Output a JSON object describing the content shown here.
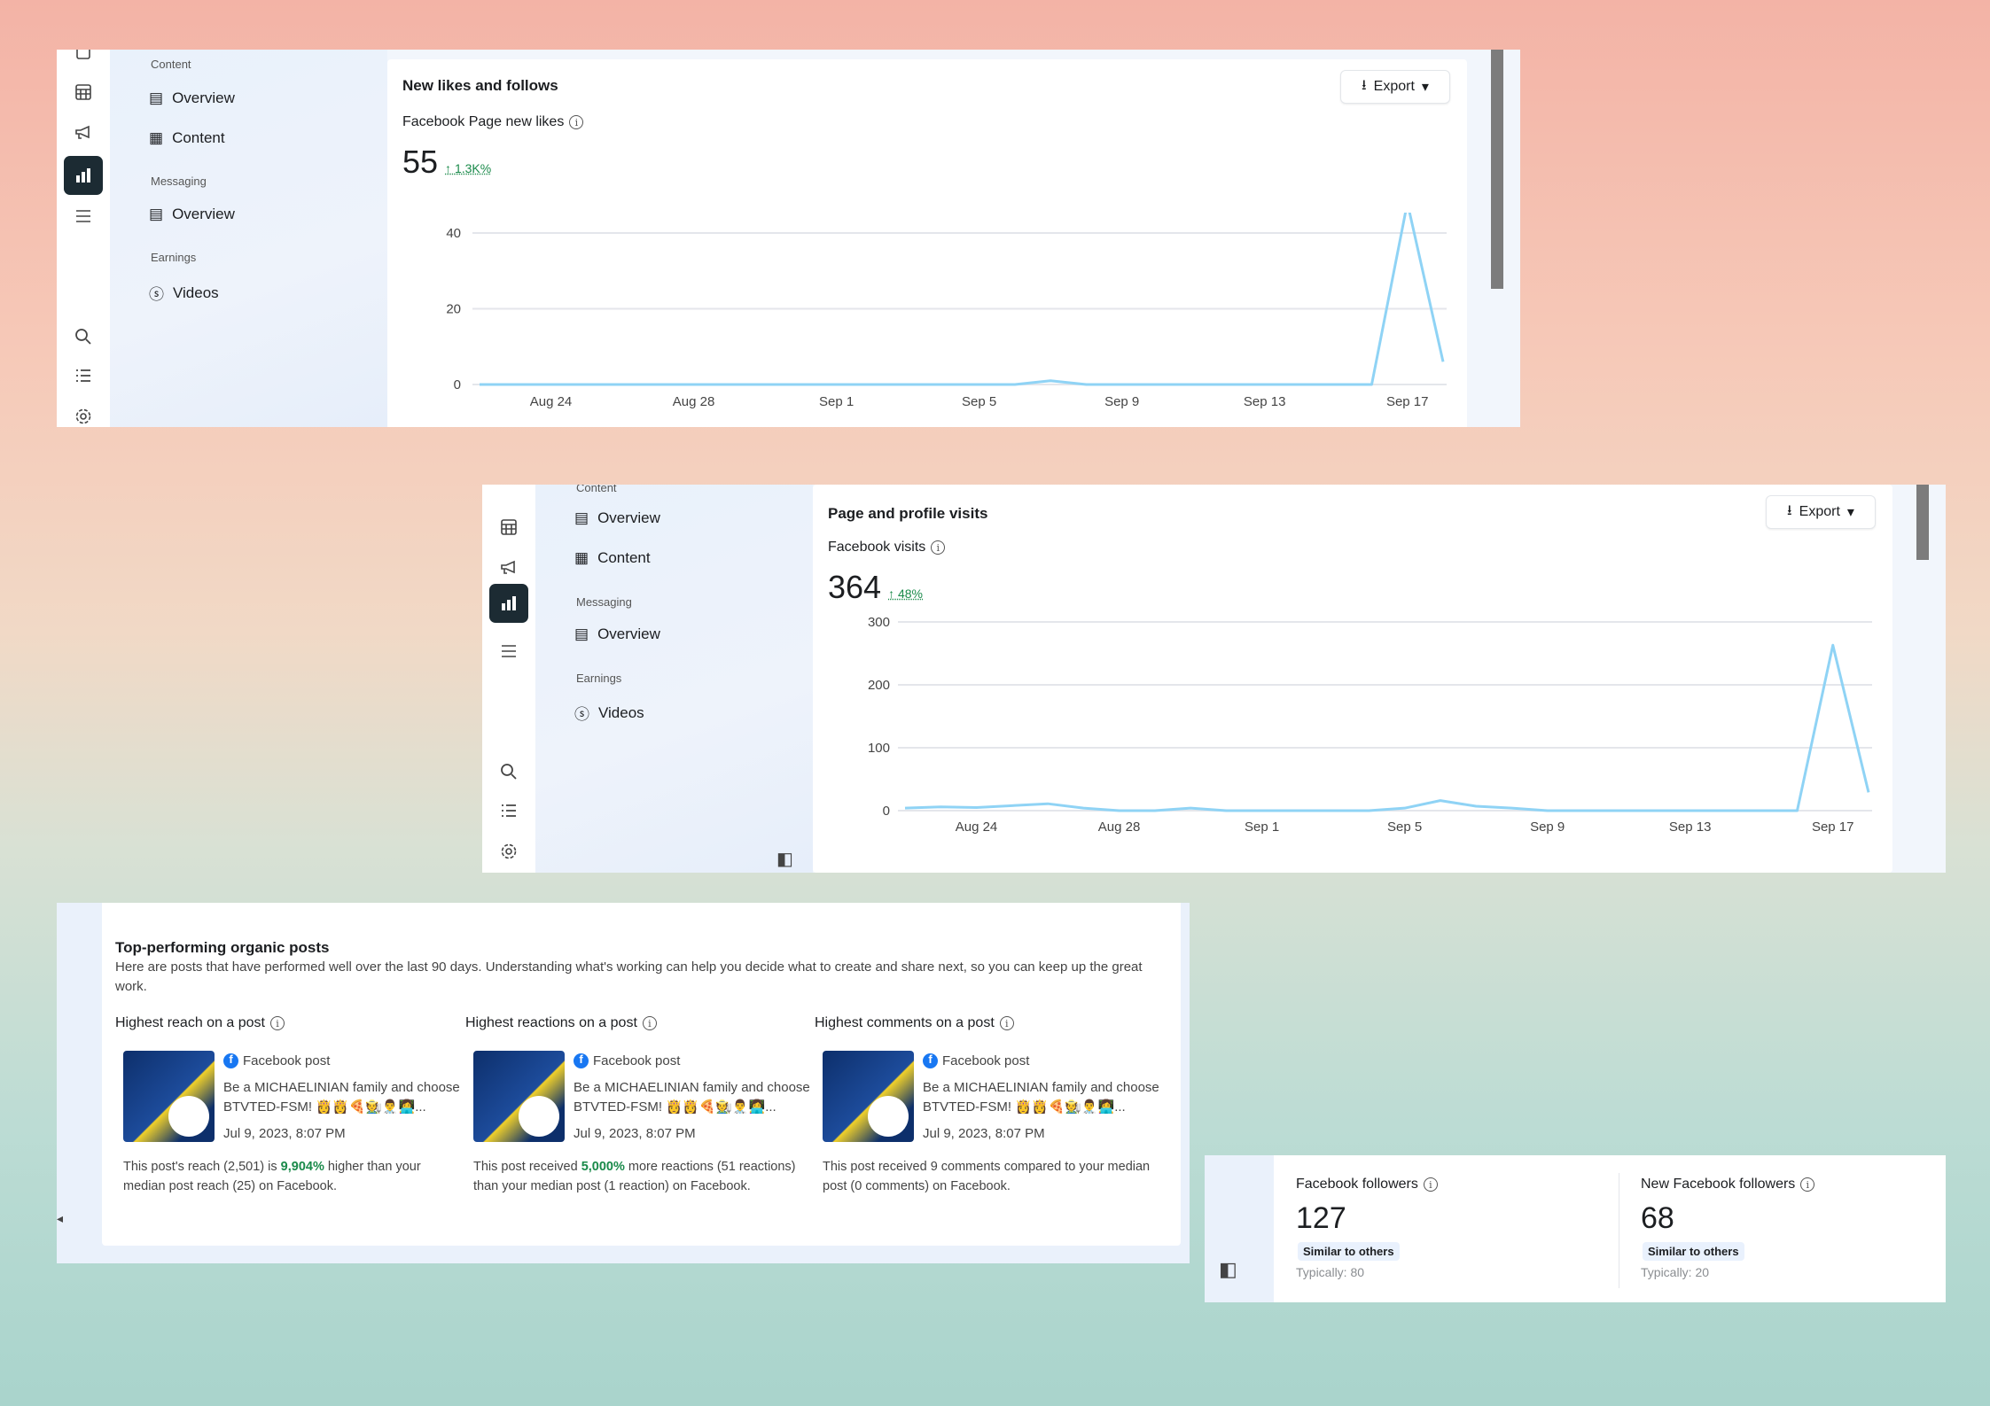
{
  "nav": {
    "sec_content": "Content",
    "overview": "Overview",
    "content": "Content",
    "sec_messaging": "Messaging",
    "msg_overview": "Overview",
    "sec_earnings": "Earnings",
    "videos": "Videos"
  },
  "panel1": {
    "title": "New likes and follows",
    "export": "Export",
    "metric_label": "Facebook Page new likes",
    "value": "55",
    "delta": "1.3K%"
  },
  "panel2": {
    "title": "Page and profile visits",
    "export": "Export",
    "metric_label": "Facebook visits",
    "value": "364",
    "delta": "48%"
  },
  "top_posts": {
    "title": "Top-performing organic posts",
    "description": "Here are posts that have performed well over the last 90 days. Understanding what's working can help you decide what to create and share next, so you can keep up the great work.",
    "columns": [
      {
        "heading": "Highest reach on a post",
        "type": "Facebook post",
        "text1": "Be a MICHAELINIAN family and choose",
        "text2": "BTVTED-FSM! 👸👸🍕🧑‍🌾👨‍⚕️👩‍💻...",
        "date": "Jul 9, 2023, 8:07 PM",
        "pre": "This post's reach (2,501) is ",
        "highlight": "9,904%",
        "post": " higher than your median post reach (25) on Facebook."
      },
      {
        "heading": "Highest reactions on a post",
        "type": "Facebook post",
        "text1": "Be a MICHAELINIAN family and choose",
        "text2": "BTVTED-FSM! 👸👸🍕🧑‍🌾👨‍⚕️👩‍💻...",
        "date": "Jul 9, 2023, 8:07 PM",
        "pre": "This post received ",
        "highlight": "5,000%",
        "post": " more reactions (51 reactions) than your median post (1 reaction) on Facebook."
      },
      {
        "heading": "Highest comments on a post",
        "type": "Facebook post",
        "text1": "Be a MICHAELINIAN family and choose",
        "text2": "BTVTED-FSM! 👸👸🍕🧑‍🌾👨‍⚕️👩‍💻...",
        "date": "Jul 9, 2023, 8:07 PM",
        "pre": "This post received 9 comments compared to your median post (0 comments) on Facebook.",
        "highlight": "",
        "post": ""
      }
    ]
  },
  "followers": [
    {
      "label": "Facebook followers",
      "value": "127",
      "badge": "Similar to others",
      "typical": "Typically: 80"
    },
    {
      "label": "New Facebook followers",
      "value": "68",
      "badge": "Similar to others",
      "typical": "Typically: 20"
    }
  ],
  "colors": {
    "line": "#8fd3f5",
    "positive": "#1a8a4a",
    "active_icon_bg": "#1c2b33"
  },
  "chart_data": [
    {
      "type": "line",
      "title": "Facebook Page new likes",
      "x": [
        "Aug 22",
        "Aug 23",
        "Aug 24",
        "Aug 25",
        "Aug 26",
        "Aug 27",
        "Aug 28",
        "Aug 29",
        "Aug 30",
        "Aug 31",
        "Sep 1",
        "Sep 2",
        "Sep 3",
        "Sep 4",
        "Sep 5",
        "Sep 6",
        "Sep 7",
        "Sep 8",
        "Sep 9",
        "Sep 10",
        "Sep 11",
        "Sep 12",
        "Sep 13",
        "Sep 14",
        "Sep 15",
        "Sep 16",
        "Sep 17",
        "Sep 18"
      ],
      "values": [
        0,
        0,
        0,
        0,
        0,
        0,
        0,
        0,
        0,
        0,
        0,
        0,
        0,
        0,
        0,
        0,
        1,
        0,
        0,
        0,
        0,
        0,
        0,
        0,
        0,
        0,
        48,
        6
      ],
      "x_ticks": [
        "Aug 24",
        "Aug 28",
        "Sep 1",
        "Sep 5",
        "Sep 9",
        "Sep 13",
        "Sep 17"
      ],
      "y_ticks": [
        "0",
        "20",
        "40"
      ],
      "ylim": [
        0,
        40
      ],
      "grid": true
    },
    {
      "type": "line",
      "title": "Facebook visits",
      "x": [
        "Aug 22",
        "Aug 23",
        "Aug 24",
        "Aug 25",
        "Aug 26",
        "Aug 27",
        "Aug 28",
        "Aug 29",
        "Aug 30",
        "Aug 31",
        "Sep 1",
        "Sep 2",
        "Sep 3",
        "Sep 4",
        "Sep 5",
        "Sep 6",
        "Sep 7",
        "Sep 8",
        "Sep 9",
        "Sep 10",
        "Sep 11",
        "Sep 12",
        "Sep 13",
        "Sep 14",
        "Sep 15",
        "Sep 16",
        "Sep 17",
        "Sep 18"
      ],
      "values": [
        4,
        6,
        5,
        8,
        11,
        4,
        0,
        0,
        4,
        0,
        0,
        0,
        0,
        0,
        4,
        16,
        7,
        4,
        0,
        0,
        0,
        0,
        0,
        0,
        0,
        0,
        263,
        29
      ],
      "x_ticks": [
        "Aug 24",
        "Aug 28",
        "Sep 1",
        "Sep 5",
        "Sep 9",
        "Sep 13",
        "Sep 17"
      ],
      "y_ticks": [
        "0",
        "100",
        "200",
        "300"
      ],
      "ylim": [
        0,
        300
      ],
      "grid": true
    }
  ]
}
